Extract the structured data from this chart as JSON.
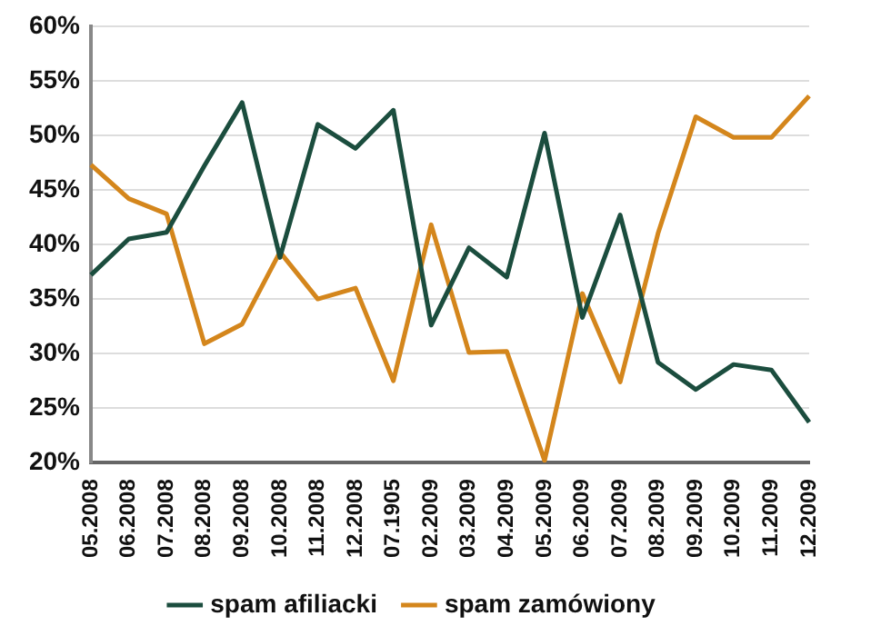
{
  "chart_data": {
    "type": "line",
    "categories": [
      "05.2008",
      "06.2008",
      "07.2008",
      "08.2008",
      "09.2008",
      "10.2008",
      "11.2008",
      "12.2008",
      "07.1905",
      "02.2009",
      "03.2009",
      "04.2009",
      "05.2009",
      "06.2009",
      "07.2009",
      "08.2009",
      "09.2009",
      "10.2009",
      "11.2009",
      "12.2009"
    ],
    "series": [
      {
        "name": "spam afiliacki",
        "color": "#1b4d3e",
        "values": [
          37.2,
          40.5,
          41.1,
          47.2,
          53,
          38.8,
          51,
          48.8,
          52.3,
          32.6,
          39.7,
          37,
          50.2,
          33.3,
          42.7,
          29.2,
          26.7,
          29,
          28.5,
          23.7
        ]
      },
      {
        "name": "spam zamówiony",
        "color": "#d4861c",
        "values": [
          47.3,
          44.2,
          42.8,
          30.9,
          32.7,
          39.3,
          35,
          36,
          27.5,
          41.8,
          30.1,
          30.2,
          20.2,
          35.5,
          27.4,
          41,
          51.7,
          49.8,
          49.8,
          53.6
        ]
      }
    ],
    "ylim": [
      20,
      60
    ],
    "yticks": [
      {
        "value": 20,
        "label": "20%"
      },
      {
        "value": 25,
        "label": "25%"
      },
      {
        "value": 30,
        "label": "30%"
      },
      {
        "value": 35,
        "label": "35%"
      },
      {
        "value": 40,
        "label": "40%"
      },
      {
        "value": 45,
        "label": "45%"
      },
      {
        "value": 50,
        "label": "50%"
      },
      {
        "value": 55,
        "label": "55%"
      },
      {
        "value": 60,
        "label": "60%"
      }
    ],
    "grid": "y",
    "legend": "bottom",
    "marker": "none",
    "line_style": "solid"
  }
}
